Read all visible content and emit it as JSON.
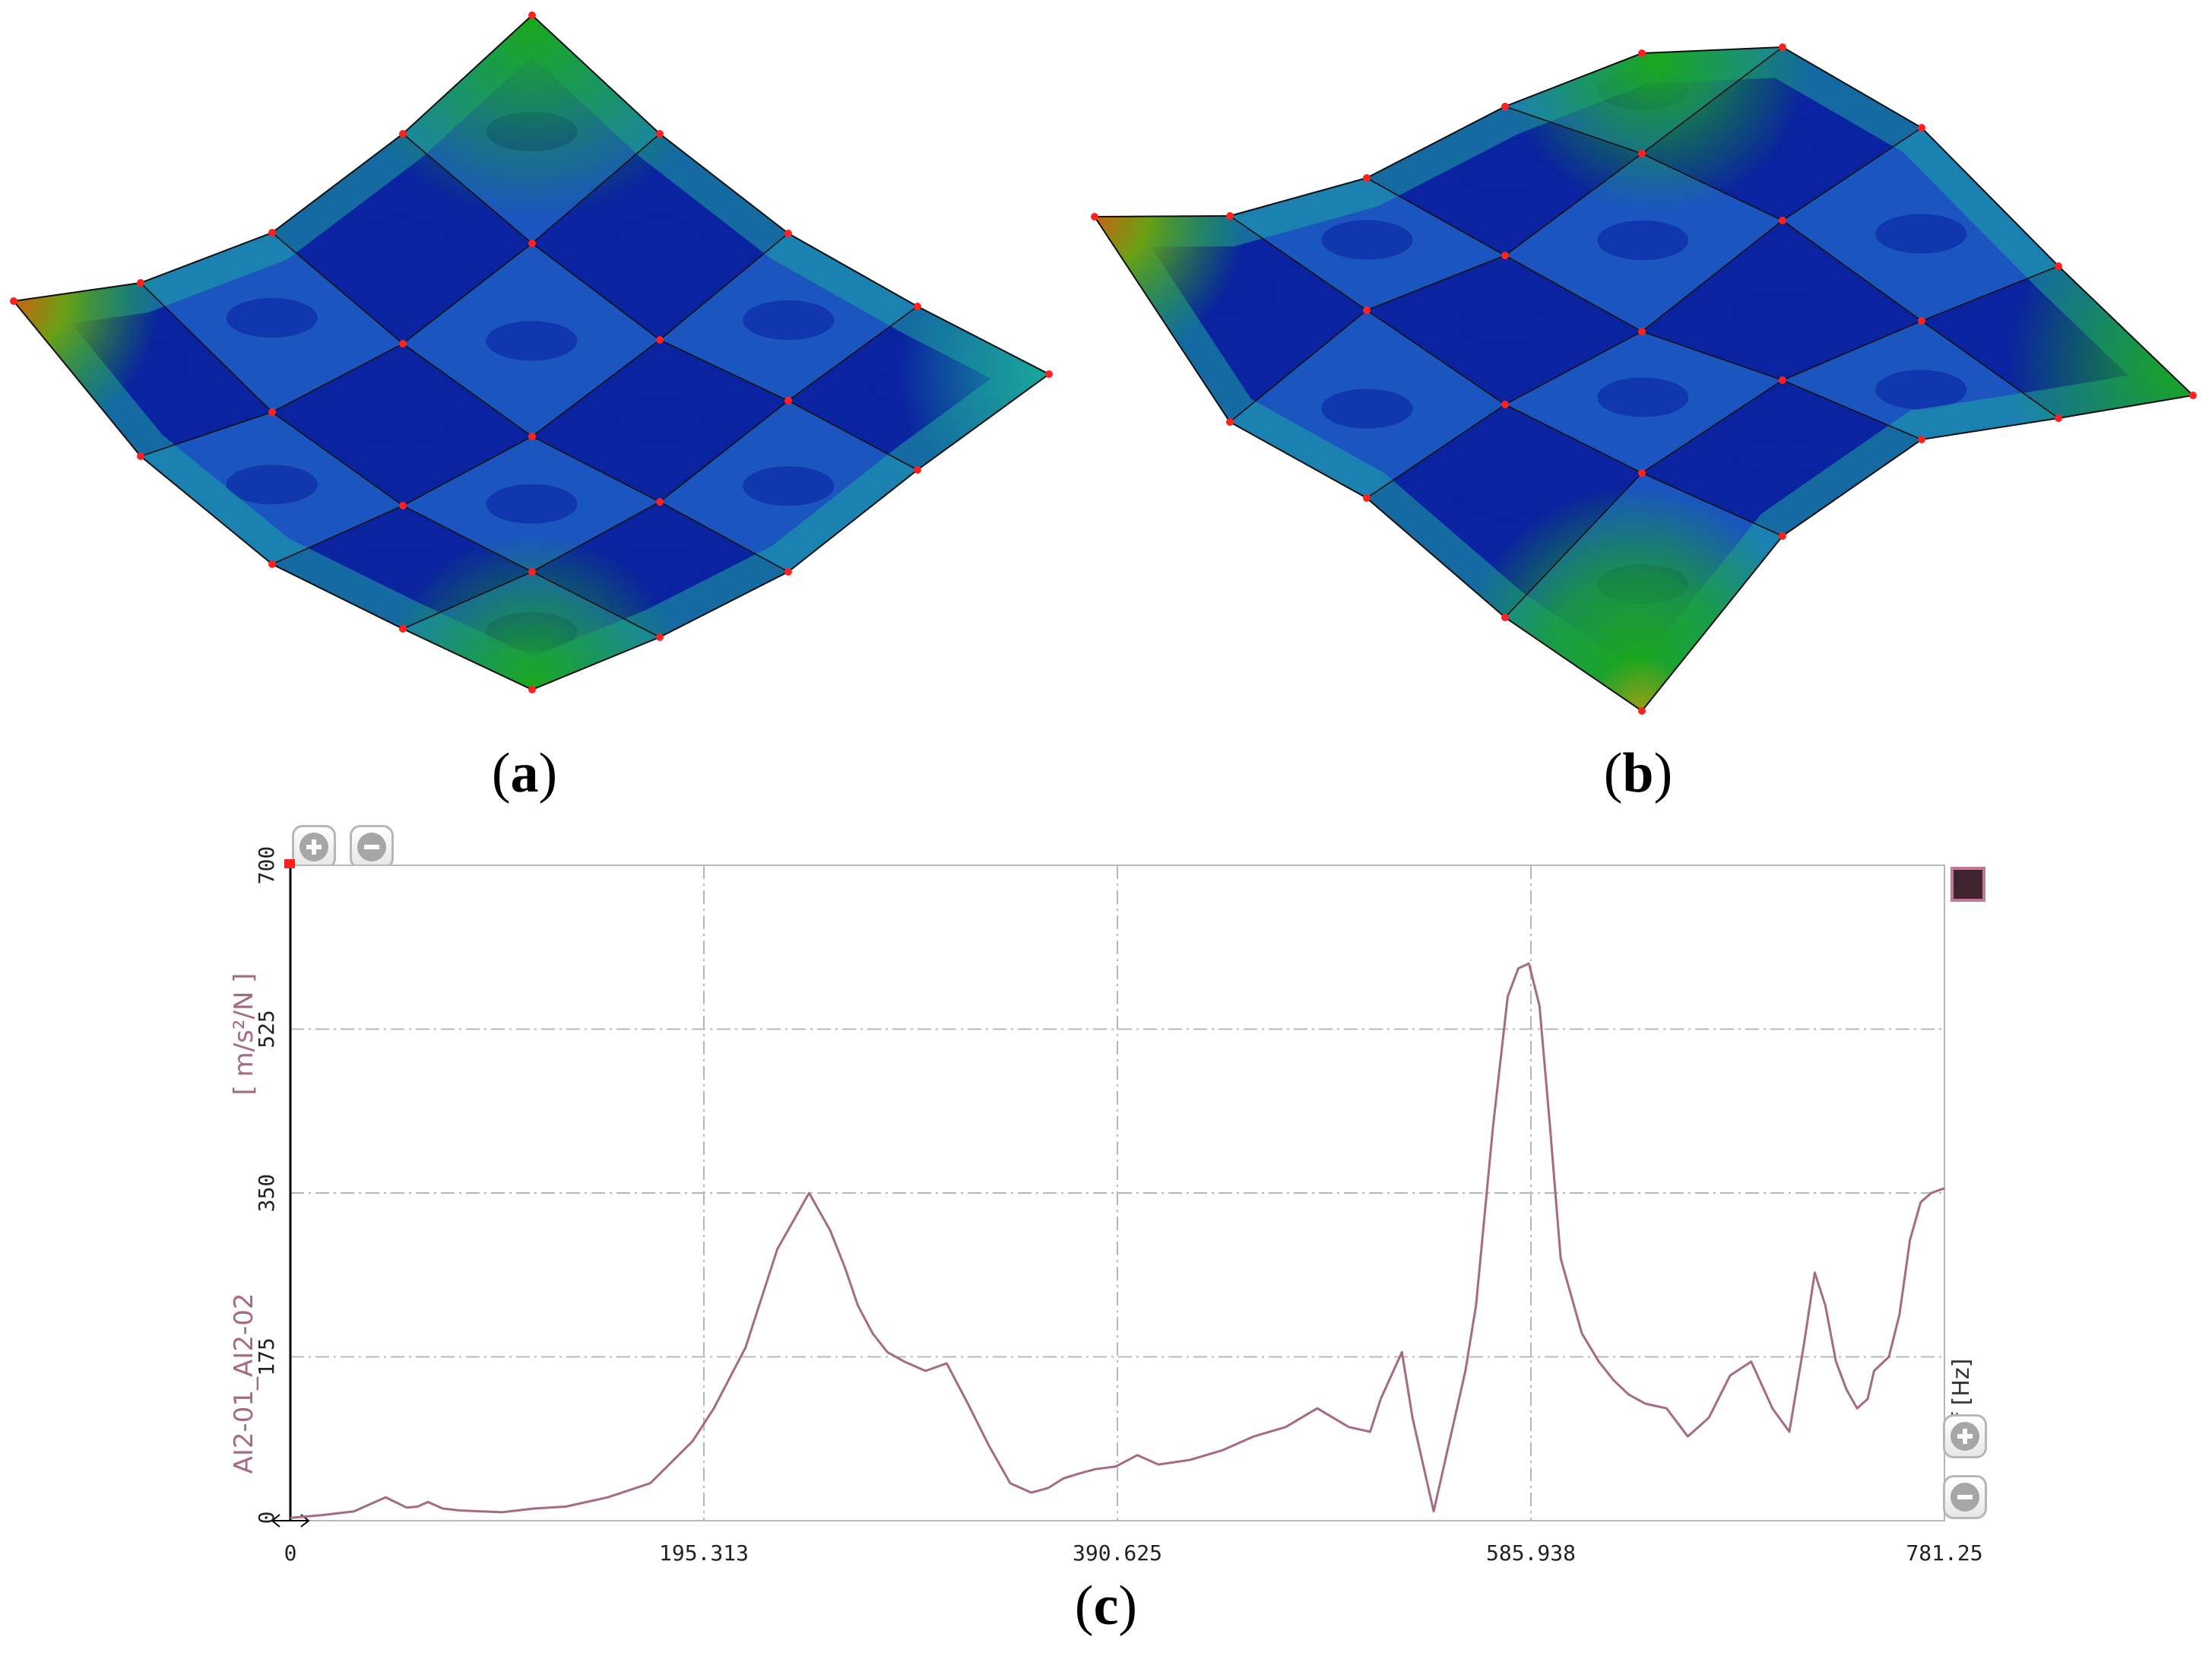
{
  "panels": {
    "a": {
      "caption_open": "(",
      "caption_letter": "a",
      "caption_close": ")"
    },
    "b": {
      "caption_open": "(",
      "caption_letter": "b",
      "caption_close": ")"
    },
    "c": {
      "caption_open": "(",
      "caption_letter": "c",
      "caption_close": ")"
    }
  },
  "colors": {
    "deep_blue": "#0a23a0",
    "mid_blue": "#1a55c0",
    "teal": "#1ea5a2",
    "green": "#1aa81e",
    "orange": "#c76410",
    "node_red": "#ff2020",
    "curve": "#a76b80",
    "axis_label": "#a76b80",
    "grid": "#b8b8b8"
  },
  "chart_data": {
    "type": "line",
    "title": "",
    "ylabel": "AI2-01_AI2-02  [ m/s²/N ]",
    "ylabel_channel": "AI2-01_AI2-02",
    "ylabel_unit": "[ m/s²/N ]",
    "xlabel": "f [Hz]",
    "xlim": [
      0,
      781.25
    ],
    "ylim": [
      0,
      700
    ],
    "x_ticks": [
      "0",
      "195.313",
      "390.625",
      "585.938",
      "781.25"
    ],
    "x_tick_values": [
      0,
      195.313,
      390.625,
      585.938,
      781.25
    ],
    "y_ticks": [
      "0",
      "175",
      "350",
      "525",
      "700"
    ],
    "y_tick_values": [
      0,
      175,
      350,
      525,
      700
    ],
    "grid": true,
    "series": [
      {
        "name": "AI2-01_AI2-02",
        "x": [
          0,
          15,
          30,
          45,
          55,
          60,
          65,
          72,
          80,
          90,
          100,
          115,
          130,
          150,
          170,
          190,
          200,
          215,
          230,
          245,
          255,
          262,
          268,
          275,
          282,
          290,
          300,
          310,
          320,
          330,
          340,
          350,
          358,
          365,
          372,
          380,
          390,
          400,
          410,
          425,
          440,
          455,
          470,
          485,
          500,
          510,
          515,
          525,
          530,
          540,
          545,
          550,
          555,
          560,
          568,
          575,
          580,
          585,
          590,
          595,
          600,
          605,
          610,
          618,
          625,
          632,
          640,
          650,
          660,
          670,
          680,
          690,
          700,
          708,
          715,
          720,
          725,
          730,
          735,
          740,
          745,
          748,
          755,
          760,
          765,
          770,
          775,
          781.25
        ],
        "y": [
          3,
          6,
          10,
          25,
          14,
          15,
          20,
          13,
          11,
          10,
          9,
          13,
          15,
          25,
          40,
          85,
          120,
          185,
          290,
          350,
          310,
          270,
          230,
          200,
          180,
          170,
          160,
          168,
          125,
          80,
          40,
          30,
          35,
          45,
          50,
          55,
          58,
          70,
          60,
          65,
          75,
          90,
          100,
          120,
          100,
          95,
          130,
          180,
          110,
          10,
          60,
          110,
          160,
          230,
          420,
          560,
          590,
          595,
          550,
          420,
          280,
          240,
          200,
          170,
          150,
          135,
          125,
          120,
          90,
          110,
          155,
          170,
          120,
          95,
          190,
          265,
          230,
          170,
          140,
          120,
          130,
          160,
          175,
          220,
          300,
          340,
          350,
          355
        ]
      }
    ]
  }
}
